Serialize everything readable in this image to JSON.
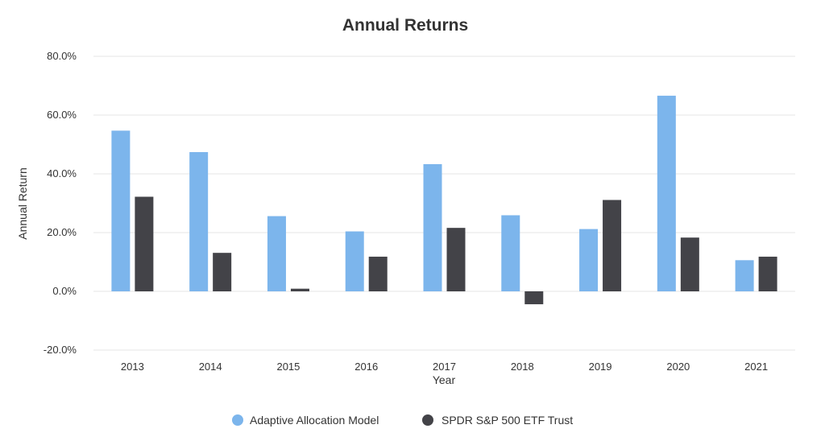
{
  "chart_data": {
    "type": "bar",
    "title": "Annual Returns",
    "xlabel": "Year",
    "ylabel": "Annual Return",
    "categories": [
      "2013",
      "2014",
      "2015",
      "2016",
      "2017",
      "2018",
      "2019",
      "2020",
      "2021"
    ],
    "series": [
      {
        "name": "Adaptive Allocation Model",
        "color": "#7cb5ec",
        "values": [
          54.7,
          47.4,
          25.6,
          20.4,
          43.3,
          25.9,
          21.2,
          66.6,
          10.6
        ]
      },
      {
        "name": "SPDR S&P 500 ETF Trust",
        "color": "#434348",
        "values": [
          32.2,
          13.1,
          0.9,
          11.8,
          21.6,
          -4.4,
          31.1,
          18.3,
          11.8
        ]
      }
    ],
    "ylim": [
      -20,
      80
    ],
    "yticks": [
      "-20.0%",
      "0.0%",
      "20.0%",
      "40.0%",
      "60.0%",
      "80.0%"
    ],
    "ytick_values": [
      -20,
      0,
      20,
      40,
      60,
      80
    ],
    "grid": true,
    "legend": "bottom-center"
  }
}
